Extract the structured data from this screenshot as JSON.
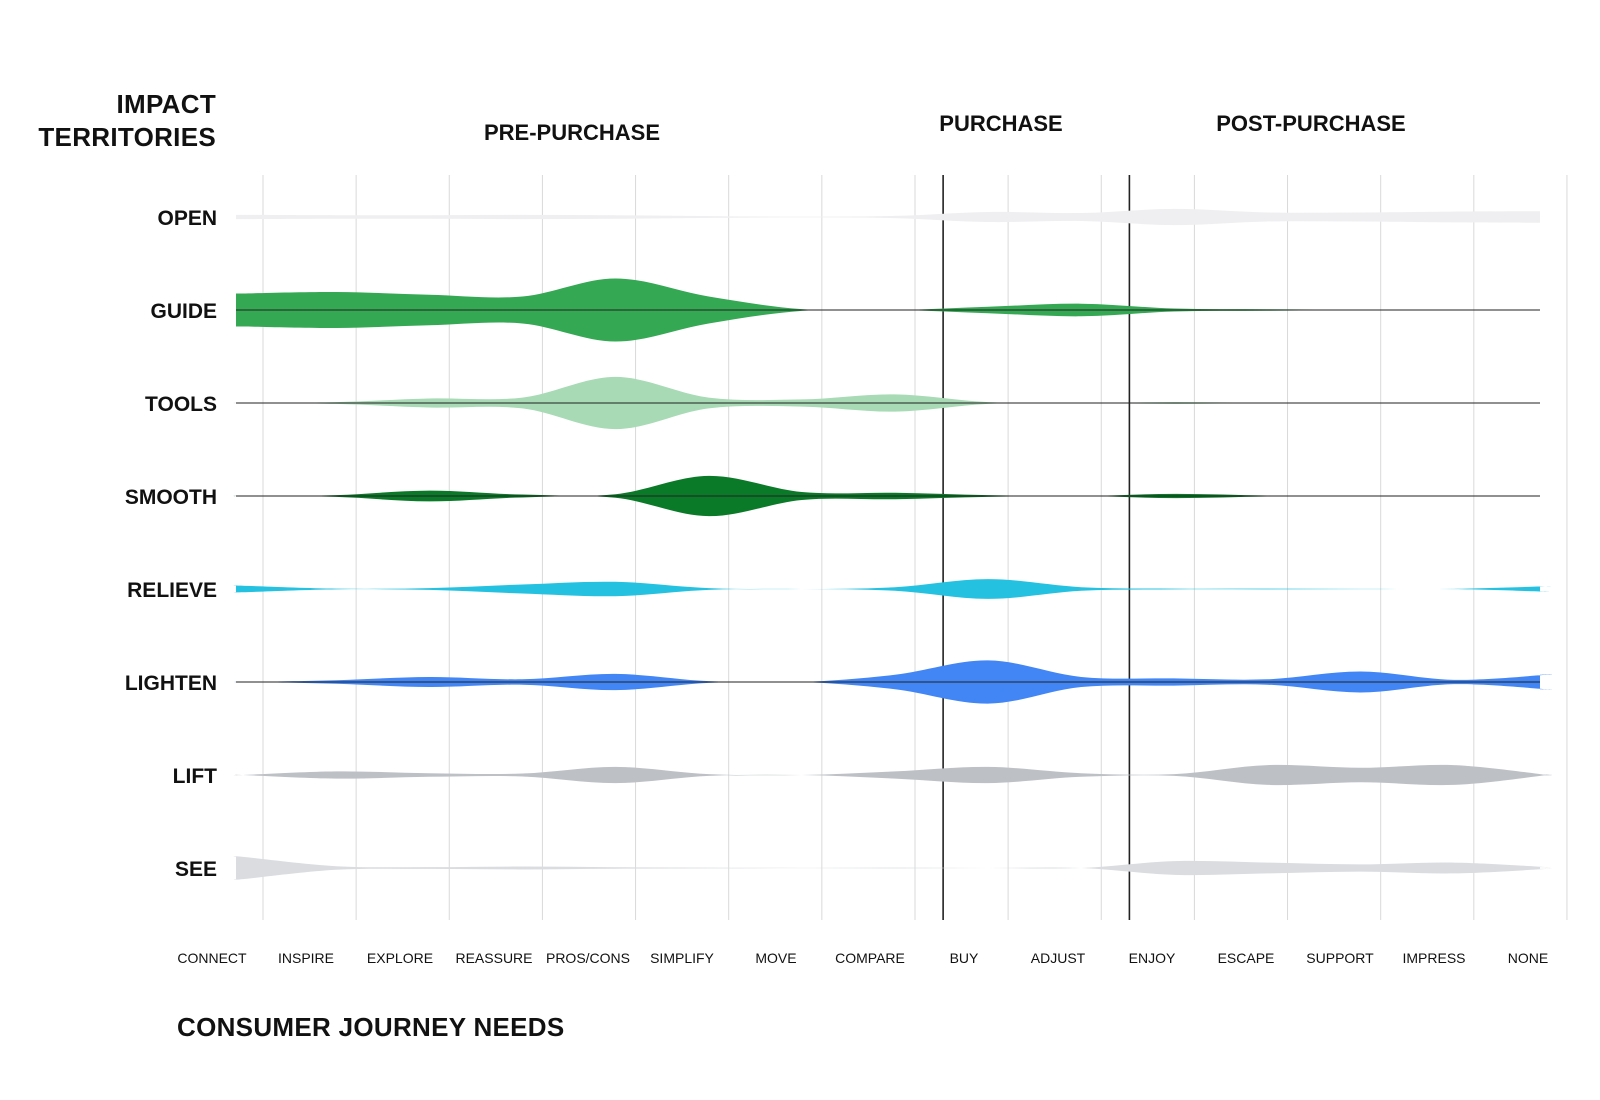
{
  "chart_data": {
    "type": "area",
    "ylabel_lines": [
      "IMPACT",
      "TERRITORIES"
    ],
    "xlabel": "CONSUMER JOURNEY NEEDS",
    "phases": [
      {
        "label": "PRE-PURCHASE",
        "from": "CONNECT",
        "to": "COMPARE"
      },
      {
        "label": "PURCHASE",
        "from": "BUY",
        "to": "ADJUST"
      },
      {
        "label": "POST-PURCHASE",
        "from": "ENJOY",
        "to": "NONE"
      }
    ],
    "categories": [
      "CONNECT",
      "INSPIRE",
      "EXPLORE",
      "REASSURE",
      "PROS/CONS",
      "SIMPLIFY",
      "MOVE",
      "COMPARE",
      "BUY",
      "ADJUST",
      "ENJOY",
      "ESCAPE",
      "SUPPORT",
      "IMPRESS",
      "NONE"
    ],
    "series": [
      {
        "name": "OPEN",
        "color": "#efeff1",
        "center_line": false,
        "values": [
          0.12,
          0.1,
          0.1,
          0.12,
          0.1,
          0.05,
          0.02,
          0.06,
          0.28,
          0.22,
          0.45,
          0.25,
          0.25,
          0.3,
          0.32
        ]
      },
      {
        "name": "GUIDE",
        "color": "#34a853",
        "center_line": true,
        "values": [
          0.92,
          1.0,
          0.85,
          0.75,
          1.75,
          0.75,
          0.05,
          0.0,
          0.18,
          0.35,
          0.08,
          0.04,
          0.01,
          0.0,
          0.0
        ]
      },
      {
        "name": "TOOLS",
        "color": "#a8dab5",
        "center_line": true,
        "values": [
          0.0,
          0.05,
          0.25,
          0.3,
          1.45,
          0.3,
          0.2,
          0.48,
          0.05,
          0.0,
          0.05,
          0.01,
          0.0,
          0.0,
          0.0
        ]
      },
      {
        "name": "SMOOTH",
        "color": "#0b7a28",
        "center_line": true,
        "values": [
          0.0,
          0.05,
          0.3,
          0.08,
          0.1,
          1.12,
          0.22,
          0.18,
          0.05,
          0.0,
          0.12,
          0.03,
          0.0,
          0.0,
          0.0
        ]
      },
      {
        "name": "RELIEVE",
        "color": "#24c1e0",
        "center_line": false,
        "values": [
          0.18,
          0.02,
          0.05,
          0.25,
          0.4,
          0.05,
          0.0,
          0.1,
          0.55,
          0.1,
          0.02,
          0.02,
          0.01,
          0.01,
          0.15
        ]
      },
      {
        "name": "LIGHTEN",
        "color": "#4285f4",
        "center_line": true,
        "values": [
          0.0,
          0.1,
          0.28,
          0.15,
          0.45,
          0.05,
          0.0,
          0.4,
          1.2,
          0.28,
          0.2,
          0.15,
          0.58,
          0.12,
          0.4
        ]
      },
      {
        "name": "LIFT",
        "color": "#bdc1c6",
        "center_line": false,
        "values": [
          0.0,
          0.2,
          0.1,
          0.08,
          0.45,
          0.05,
          0.0,
          0.2,
          0.45,
          0.1,
          0.05,
          0.55,
          0.4,
          0.55,
          0.0
        ]
      },
      {
        "name": "SEE",
        "color": "#dadce0",
        "center_line": false,
        "values": [
          0.62,
          0.1,
          0.05,
          0.08,
          0.04,
          0.02,
          0.01,
          0.02,
          0.0,
          0.0,
          0.38,
          0.3,
          0.2,
          0.3,
          0.05
        ]
      }
    ],
    "grid": true,
    "legend": "none"
  }
}
